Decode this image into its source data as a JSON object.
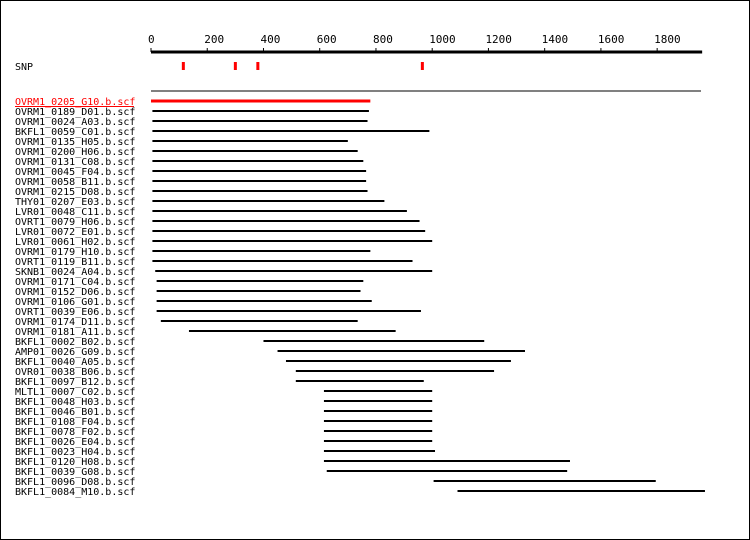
{
  "colors": {
    "axis": "#000000",
    "read": "#000000",
    "highlight": "#ff0000",
    "snp": "#ff0000"
  },
  "chart_data": {
    "type": "read-alignment",
    "axis": {
      "range": [
        0,
        1960
      ],
      "ticks": [
        0,
        200,
        400,
        600,
        800,
        1000,
        1200,
        1400,
        1600,
        1800
      ]
    },
    "snp_track": {
      "label": "SNP",
      "positions": [
        115,
        300,
        380,
        965
      ]
    },
    "reads": [
      {
        "name": "OVRM1_0205_G10.b.scf",
        "start": 0,
        "end": 780,
        "highlight": true
      },
      {
        "name": "OVRM1_0189_D01.b.scf",
        "start": 5,
        "end": 775
      },
      {
        "name": "OVRM1_0024_A03.b.scf",
        "start": 5,
        "end": 770
      },
      {
        "name": "BKFL1_0059_C01.b.scf",
        "start": 5,
        "end": 990
      },
      {
        "name": "OVRM1_0135_H05.b.scf",
        "start": 5,
        "end": 700
      },
      {
        "name": "OVRM1_0200_H06.b.scf",
        "start": 5,
        "end": 735
      },
      {
        "name": "OVRM1_0131_C08.b.scf",
        "start": 5,
        "end": 755
      },
      {
        "name": "OVRM1_0045_F04.b.scf",
        "start": 5,
        "end": 765
      },
      {
        "name": "OVRM1_0058_B11.b.scf",
        "start": 5,
        "end": 765
      },
      {
        "name": "OVRM1_0215_D08.b.scf",
        "start": 5,
        "end": 770
      },
      {
        "name": "THY01_0207_E03.b.scf",
        "start": 5,
        "end": 830
      },
      {
        "name": "LVR01_0048_C11.b.scf",
        "start": 5,
        "end": 910
      },
      {
        "name": "OVRT1_0079_H06.b.scf",
        "start": 5,
        "end": 955
      },
      {
        "name": "LVR01_0072_E01.b.scf",
        "start": 5,
        "end": 975
      },
      {
        "name": "LVR01_0061_H02.b.scf",
        "start": 5,
        "end": 1000
      },
      {
        "name": "OVRM1_0179_H10.b.scf",
        "start": 5,
        "end": 780
      },
      {
        "name": "OVRT1_0119_B11.b.scf",
        "start": 5,
        "end": 930
      },
      {
        "name": "SKNB1_0024_A04.b.scf",
        "start": 15,
        "end": 1000
      },
      {
        "name": "OVRM1_0171_C04.b.scf",
        "start": 20,
        "end": 755
      },
      {
        "name": "OVRM1_0152_D06.b.scf",
        "start": 20,
        "end": 745
      },
      {
        "name": "OVRM1_0106_G01.b.scf",
        "start": 20,
        "end": 785
      },
      {
        "name": "OVRT1_0039_E06.b.scf",
        "start": 20,
        "end": 960
      },
      {
        "name": "OVRM1_0174_D11.b.scf",
        "start": 35,
        "end": 735
      },
      {
        "name": "OVRM1_0181_A11.b.scf",
        "start": 135,
        "end": 870
      },
      {
        "name": "BKFL1_0002_B02.b.scf",
        "start": 400,
        "end": 1185
      },
      {
        "name": "AMP01_0026_G09.b.scf",
        "start": 450,
        "end": 1330
      },
      {
        "name": "BKFL1_0040_A05.b.scf",
        "start": 480,
        "end": 1280
      },
      {
        "name": "OVR01_0038_B06.b.scf",
        "start": 515,
        "end": 1220
      },
      {
        "name": "BKFL1_0097_B12.b.scf",
        "start": 515,
        "end": 970
      },
      {
        "name": "MLTL1_0007_C02.b.scf",
        "start": 615,
        "end": 1000
      },
      {
        "name": "BKFL1_0048_H03.b.scf",
        "start": 615,
        "end": 1000
      },
      {
        "name": "BKFL1_0046_B01.b.scf",
        "start": 615,
        "end": 1000
      },
      {
        "name": "BKFL1_0108_F04.b.scf",
        "start": 615,
        "end": 1000
      },
      {
        "name": "BKFL1_0078_F02.b.scf",
        "start": 615,
        "end": 1000
      },
      {
        "name": "BKFL1_0026_E04.b.scf",
        "start": 615,
        "end": 1000
      },
      {
        "name": "BKFL1_0023_H04.b.scf",
        "start": 615,
        "end": 1010
      },
      {
        "name": "BKFL1_0120_H08.b.scf",
        "start": 615,
        "end": 1490
      },
      {
        "name": "BKFL1_0039_G08.b.scf",
        "start": 625,
        "end": 1480
      },
      {
        "name": "BKFL1_0096_D08.b.scf",
        "start": 1005,
        "end": 1795
      },
      {
        "name": "BKFL1_0084_M10.b.scf",
        "start": 1090,
        "end": 1970
      }
    ]
  }
}
